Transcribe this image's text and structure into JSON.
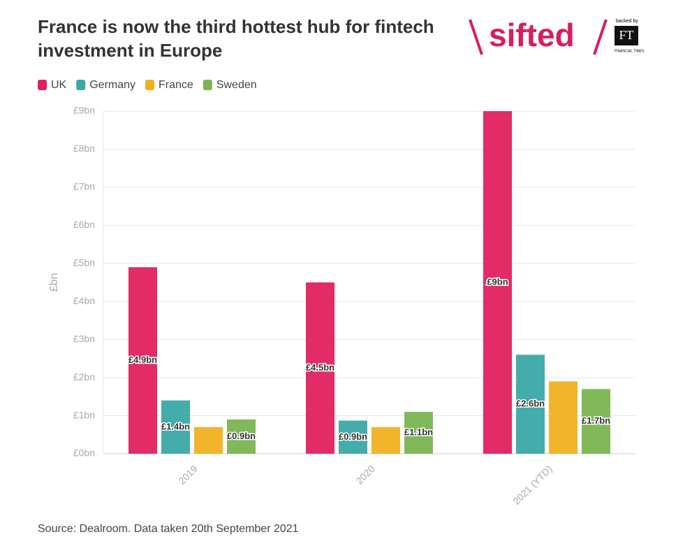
{
  "logo": {
    "text": "sifted",
    "backed_by": "backed by",
    "ft": "FT",
    "ft_sub": "FINANCIAL TIMES"
  },
  "chart_data": {
    "type": "bar",
    "title": [
      "France is now the third hottest hub for fintech",
      "investment in Europe"
    ],
    "y_label": "£bn",
    "source": "Source: Dealroom. Data taken 20th September 2021",
    "categories": [
      "2019",
      "2020",
      "2021 (YTD)"
    ],
    "series": [
      {
        "name": "UK",
        "color": "#e0205f",
        "values": [
          4.9,
          4.5,
          9
        ],
        "value_labels": [
          "£4.9bn",
          "£4.5bn",
          "£9bn"
        ]
      },
      {
        "name": "Germany",
        "color": "#3aa8a6",
        "values": [
          1.4,
          0.87,
          2.6
        ],
        "value_labels": [
          "£1.4bn",
          "£0.9bn",
          "£2.6bn"
        ]
      },
      {
        "name": "France",
        "color": "#f0b020",
        "values": [
          0.7,
          0.7,
          1.9
        ]
      },
      {
        "name": "Sweden",
        "color": "#7ab551",
        "values": [
          0.9,
          1.1,
          1.7
        ],
        "value_labels": [
          "£0.9bn",
          "£1.1bn",
          "£1.7bn"
        ]
      }
    ],
    "ylim": [
      0,
      9
    ],
    "yticks": [
      {
        "value": 0,
        "label": "£0bn"
      },
      {
        "value": 1,
        "label": "£1bn"
      },
      {
        "value": 2,
        "label": "£2bn"
      },
      {
        "value": 3,
        "label": "£3bn"
      },
      {
        "value": 4,
        "label": "£4bn"
      },
      {
        "value": 5,
        "label": "£5bn"
      },
      {
        "value": 6,
        "label": "£6bn"
      },
      {
        "value": 7,
        "label": "£7bn"
      },
      {
        "value": 8,
        "label": "£8bn"
      },
      {
        "value": 9,
        "label": "£9bn"
      }
    ],
    "grid": true,
    "legend": "top-left"
  }
}
